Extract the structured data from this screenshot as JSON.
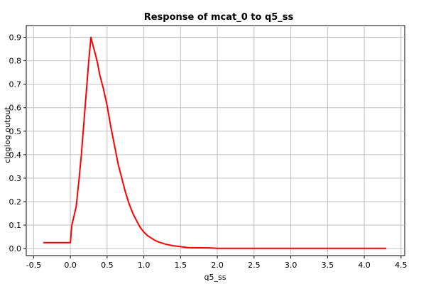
{
  "chart_data": {
    "type": "line",
    "title": "Response of mcat_0 to q5_ss",
    "xlabel": "q5_ss",
    "ylabel": "cloglog output",
    "xlim": [
      -0.6,
      4.55
    ],
    "ylim": [
      -0.03,
      0.95
    ],
    "xticks": [
      -0.5,
      0.0,
      0.5,
      1.0,
      1.5,
      2.0,
      2.5,
      3.0,
      3.5,
      4.0,
      4.5
    ],
    "xtick_labels": [
      "-0.5",
      "0.0",
      "0.5",
      "1.0",
      "1.5",
      "2.0",
      "2.5",
      "3.0",
      "3.5",
      "4.0",
      "4.5"
    ],
    "yticks": [
      0.0,
      0.1,
      0.2,
      0.3,
      0.4,
      0.5,
      0.6,
      0.7,
      0.8,
      0.9
    ],
    "ytick_labels": [
      "0.0",
      "0.1",
      "0.2",
      "0.3",
      "0.4",
      "0.5",
      "0.6",
      "0.7",
      "0.8",
      "0.9"
    ],
    "grid": true,
    "series": [
      {
        "color": "#ff0000",
        "x": [
          -0.37,
          0.0,
          0.01,
          0.02,
          0.05,
          0.08,
          0.1,
          0.12,
          0.15,
          0.18,
          0.22,
          0.25,
          0.28,
          0.3,
          0.33,
          0.37,
          0.4,
          0.45,
          0.5,
          0.55,
          0.6,
          0.65,
          0.7,
          0.75,
          0.8,
          0.85,
          0.9,
          0.95,
          1.0,
          1.05,
          1.1,
          1.15,
          1.2,
          1.3,
          1.4,
          1.5,
          1.55,
          1.6,
          1.9,
          2.0,
          2.5,
          3.0,
          3.5,
          4.0,
          4.3
        ],
        "y": [
          0.025,
          0.025,
          0.06,
          0.1,
          0.14,
          0.18,
          0.24,
          0.3,
          0.4,
          0.52,
          0.68,
          0.8,
          0.9,
          0.875,
          0.84,
          0.79,
          0.74,
          0.68,
          0.61,
          0.52,
          0.44,
          0.36,
          0.3,
          0.24,
          0.19,
          0.15,
          0.12,
          0.09,
          0.07,
          0.055,
          0.045,
          0.035,
          0.028,
          0.018,
          0.012,
          0.008,
          0.006,
          0.004,
          0.003,
          0.001,
          0.001,
          0.001,
          0.001,
          0.001,
          0.001
        ]
      }
    ]
  }
}
